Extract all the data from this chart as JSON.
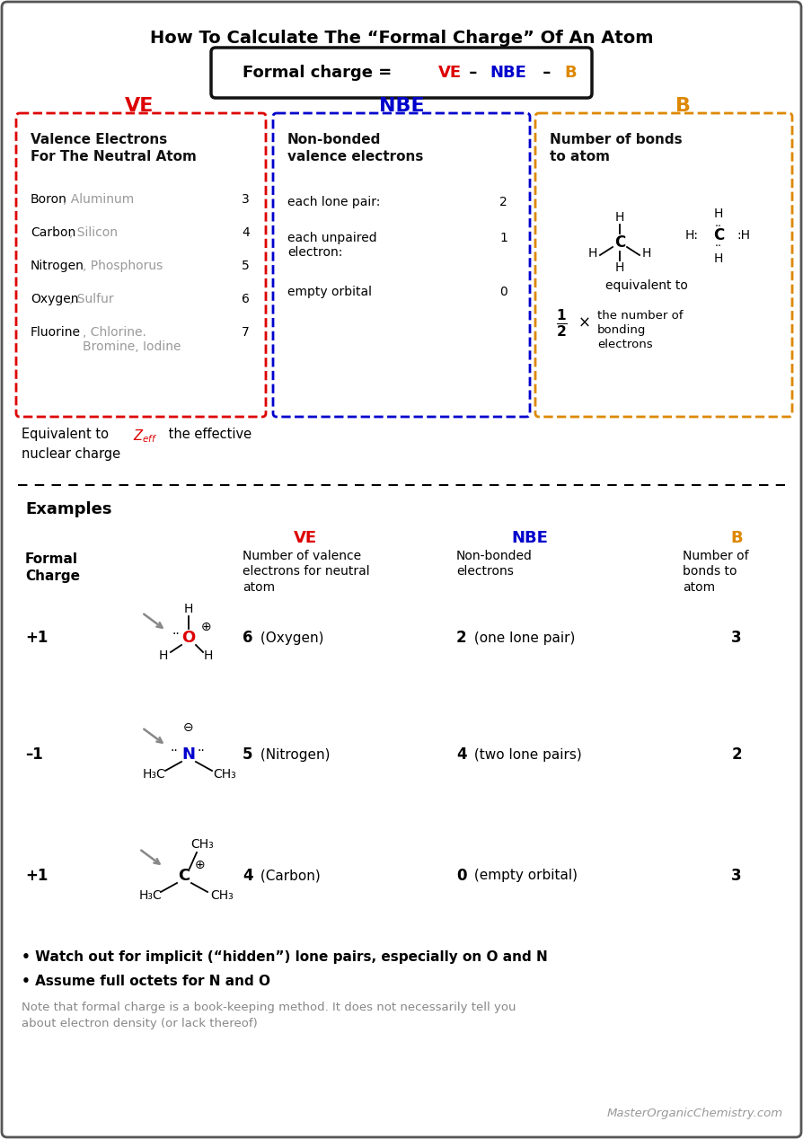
{
  "title": "How To Calculate The “Formal Charge” Of An Atom",
  "ve_color": "#dd0000",
  "nbe_color": "#0000cc",
  "b_color": "#dd8800",
  "bg_color": "#ffffff",
  "gray_color": "#999999",
  "dark_color": "#111111",
  "footer_text": "MasterOrganicChemistry.com",
  "note_text": "Note that formal charge is a book-keeping method. It does not necessarily tell you\nabout electron density (or lack thereof)",
  "bullet1": "• Watch out for implicit (“hidden”) lone pairs, especially on O and N",
  "bullet2": "• Assume full octets for N and O"
}
